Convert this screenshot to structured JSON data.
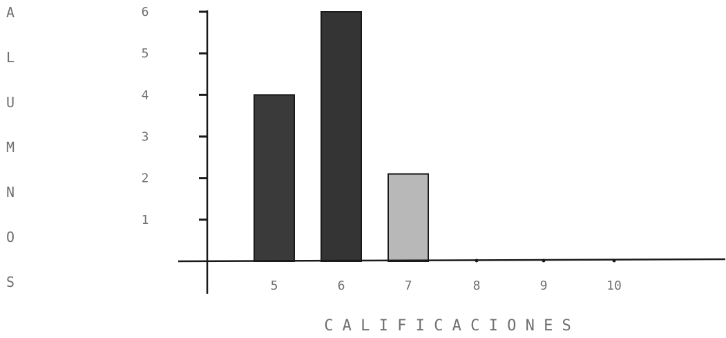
{
  "chart_data": {
    "type": "bar",
    "categories": [
      "5",
      "6",
      "7",
      "8",
      "9",
      "10"
    ],
    "values": [
      4,
      6,
      2.1,
      0,
      0,
      0
    ],
    "xlabel": "CALIFICACIONES",
    "ylabel": "ALUMNOS",
    "ylim": [
      0,
      6
    ],
    "yticks": [
      "1",
      "2",
      "3",
      "4",
      "5",
      "6"
    ],
    "grid": false,
    "colors": {
      "bar_dark": "#3a3a3a",
      "bar_light": "#b8b8b8",
      "axis": "#1a1a1a"
    },
    "bar_colors": [
      "#3a3a3a",
      "#343434",
      "#b8b8b8",
      "#b8b8b8",
      "#b8b8b8",
      "#b8b8b8"
    ]
  }
}
